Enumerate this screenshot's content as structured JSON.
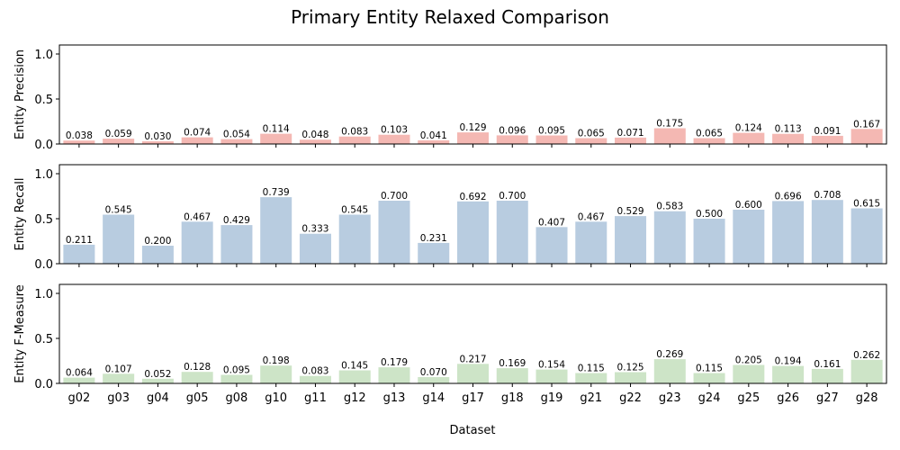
{
  "chart_data": {
    "type": "bar",
    "title": "Primary Entity Relaxed Comparison",
    "xlabel": "Dataset",
    "categories": [
      "g02",
      "g03",
      "g04",
      "g05",
      "g08",
      "g10",
      "g11",
      "g12",
      "g13",
      "g14",
      "g17",
      "g18",
      "g19",
      "g21",
      "g22",
      "g23",
      "g24",
      "g25",
      "g26",
      "g27",
      "g28"
    ],
    "y_ticks": [
      "0.0",
      "0.5",
      "1.0"
    ],
    "ylim": [
      0,
      1.1
    ],
    "grid": false,
    "series": [
      {
        "ylabel": "Entity Precision",
        "color": "#f4b8b3",
        "values": [
          0.038,
          0.059,
          0.03,
          0.074,
          0.054,
          0.114,
          0.048,
          0.083,
          0.103,
          0.041,
          0.129,
          0.096,
          0.095,
          0.065,
          0.071,
          0.175,
          0.065,
          0.124,
          0.113,
          0.091,
          0.167
        ],
        "labels": [
          "0.038",
          "0.059",
          "0.030",
          "0.074",
          "0.054",
          "0.114",
          "0.048",
          "0.083",
          "0.103",
          "0.041",
          "0.129",
          "0.096",
          "0.095",
          "0.065",
          "0.071",
          "0.175",
          "0.065",
          "0.124",
          "0.113",
          "0.091",
          "0.167"
        ]
      },
      {
        "ylabel": "Entity Recall",
        "color": "#b8cce0",
        "values": [
          0.211,
          0.545,
          0.2,
          0.467,
          0.429,
          0.739,
          0.333,
          0.545,
          0.7,
          0.231,
          0.692,
          0.7,
          0.407,
          0.467,
          0.529,
          0.583,
          0.5,
          0.6,
          0.696,
          0.708,
          0.615
        ],
        "labels": [
          "0.211",
          "0.545",
          "0.200",
          "0.467",
          "0.429",
          "0.739",
          "0.333",
          "0.545",
          "0.700",
          "0.231",
          "0.692",
          "0.700",
          "0.407",
          "0.467",
          "0.529",
          "0.583",
          "0.500",
          "0.600",
          "0.696",
          "0.708",
          "0.615"
        ]
      },
      {
        "ylabel": "Entity F-Measure",
        "color": "#cde4c7",
        "values": [
          0.064,
          0.107,
          0.052,
          0.128,
          0.095,
          0.198,
          0.083,
          0.145,
          0.179,
          0.07,
          0.217,
          0.169,
          0.154,
          0.115,
          0.125,
          0.269,
          0.115,
          0.205,
          0.194,
          0.161,
          0.262
        ],
        "labels": [
          "0.064",
          "0.107",
          "0.052",
          "0.128",
          "0.095",
          "0.198",
          "0.083",
          "0.145",
          "0.179",
          "0.070",
          "0.217",
          "0.169",
          "0.154",
          "0.115",
          "0.125",
          "0.269",
          "0.115",
          "0.205",
          "0.194",
          "0.161",
          "0.262"
        ]
      }
    ]
  }
}
